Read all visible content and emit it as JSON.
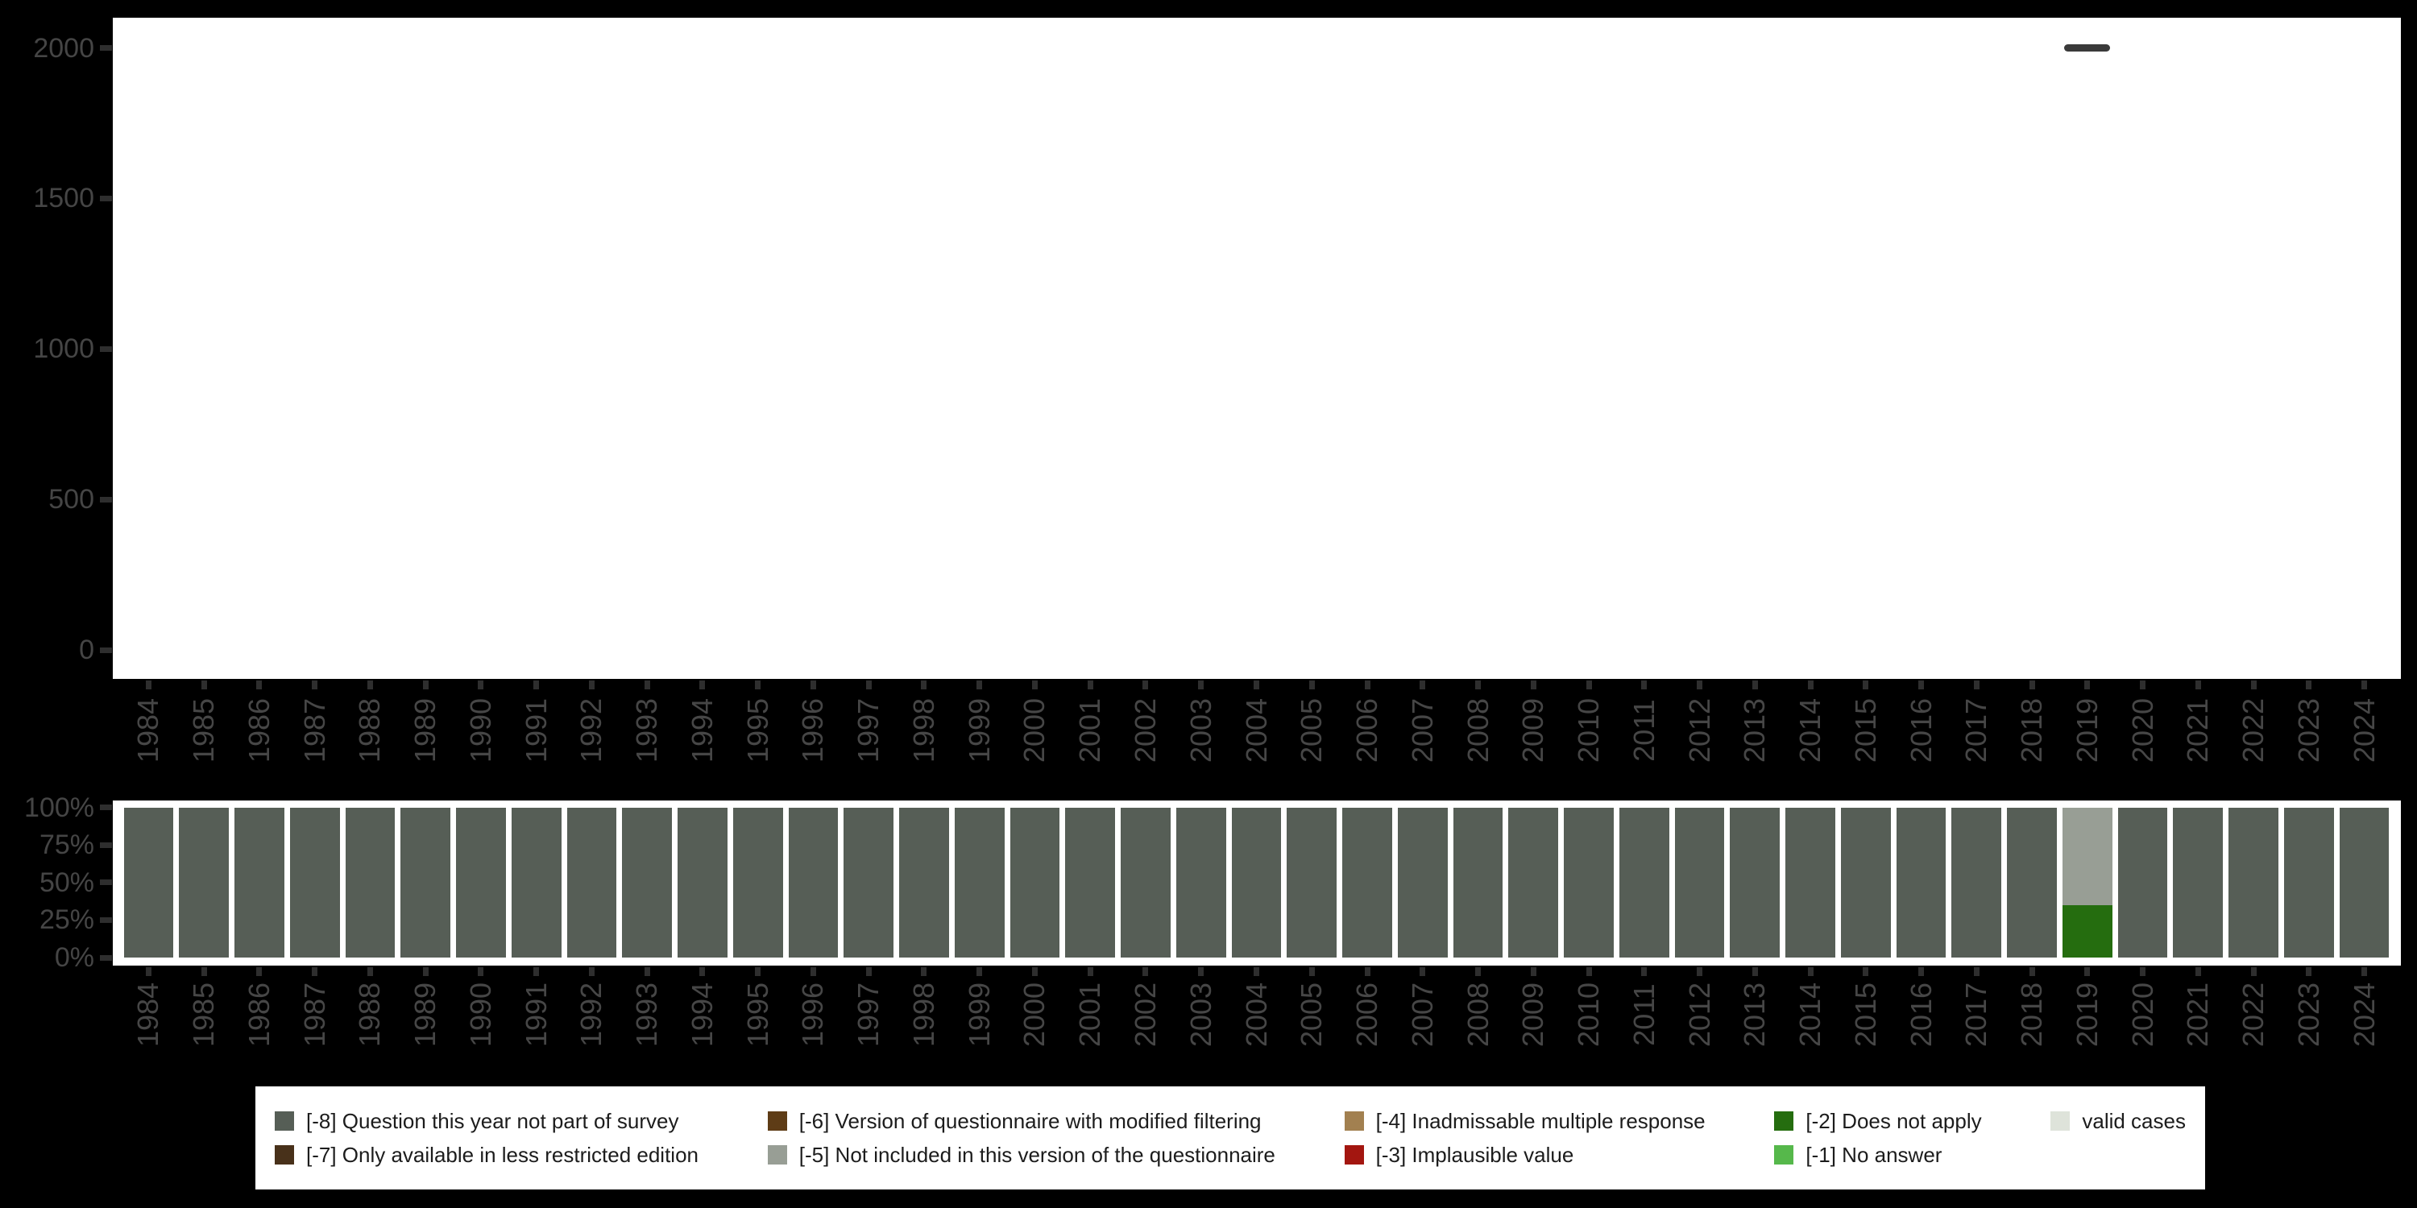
{
  "page": {
    "background_color": "#000000",
    "panel_color": "#ffffff",
    "axis_text_color": "#464646",
    "tick_color": "#2e2e2e",
    "dash_marker_color": "#3a3a3a"
  },
  "years": [
    1984,
    1985,
    1986,
    1987,
    1988,
    1989,
    1990,
    1991,
    1992,
    1993,
    1994,
    1995,
    1996,
    1997,
    1998,
    1999,
    2000,
    2001,
    2002,
    2003,
    2004,
    2005,
    2006,
    2007,
    2008,
    2009,
    2010,
    2011,
    2012,
    2013,
    2014,
    2015,
    2016,
    2017,
    2018,
    2019,
    2020,
    2021,
    2022,
    2023,
    2024
  ],
  "chart_data": [
    {
      "name": "cases-per-year",
      "type": "scatter",
      "marker": "dash",
      "title": "",
      "xlabel": "",
      "ylabel": "",
      "ylim": [
        0,
        2100
      ],
      "ytick_values": [
        2000,
        1500,
        1000,
        500,
        0
      ],
      "ytick_labels": [
        "2000",
        "1500",
        "1000",
        "500",
        "0"
      ],
      "grid": false,
      "points": [
        {
          "year": 2019,
          "value": 2000
        }
      ]
    },
    {
      "name": "code-distribution-per-year",
      "type": "bar",
      "stacked": true,
      "unit": "percent",
      "title": "",
      "xlabel": "",
      "ylabel": "",
      "ylim": [
        0,
        100
      ],
      "ytick_pcts": [
        100,
        75,
        50,
        25,
        0
      ],
      "ytick_labels": [
        "100%",
        "75%",
        "50%",
        "25%",
        "0%"
      ],
      "grid": false,
      "default_stack": [
        {
          "code": "[-8]",
          "pct": 100
        }
      ],
      "stacks_by_year": {
        "2019": [
          {
            "code": "[-2]",
            "pct": 35
          },
          {
            "code": "[-5]",
            "pct": 65
          }
        ]
      }
    }
  ],
  "legend": {
    "entries": [
      {
        "code": "[-8]",
        "label": "[-8] Question this year not part of survey",
        "color": "#565e56"
      },
      {
        "code": "[-7]",
        "label": "[-7] Only available in less restricted edition",
        "color": "#48311a"
      },
      {
        "code": "[-6]",
        "label": "[-6] Version of questionnaire with modified filtering",
        "color": "#5e3c16"
      },
      {
        "code": "[-5]",
        "label": "[-5] Not included in this version of the questionnaire",
        "color": "#989e95"
      },
      {
        "code": "[-4]",
        "label": "[-4] Inadmissable multiple response",
        "color": "#a28050"
      },
      {
        "code": "[-3]",
        "label": "[-3] Implausible value",
        "color": "#a31610"
      },
      {
        "code": "[-2]",
        "label": "[-2] Does not apply",
        "color": "#256d0f"
      },
      {
        "code": "[-1]",
        "label": "[-1] No answer",
        "color": "#56b84b"
      },
      {
        "code": "valid",
        "label": "valid cases",
        "color": "#dee3da"
      }
    ]
  }
}
